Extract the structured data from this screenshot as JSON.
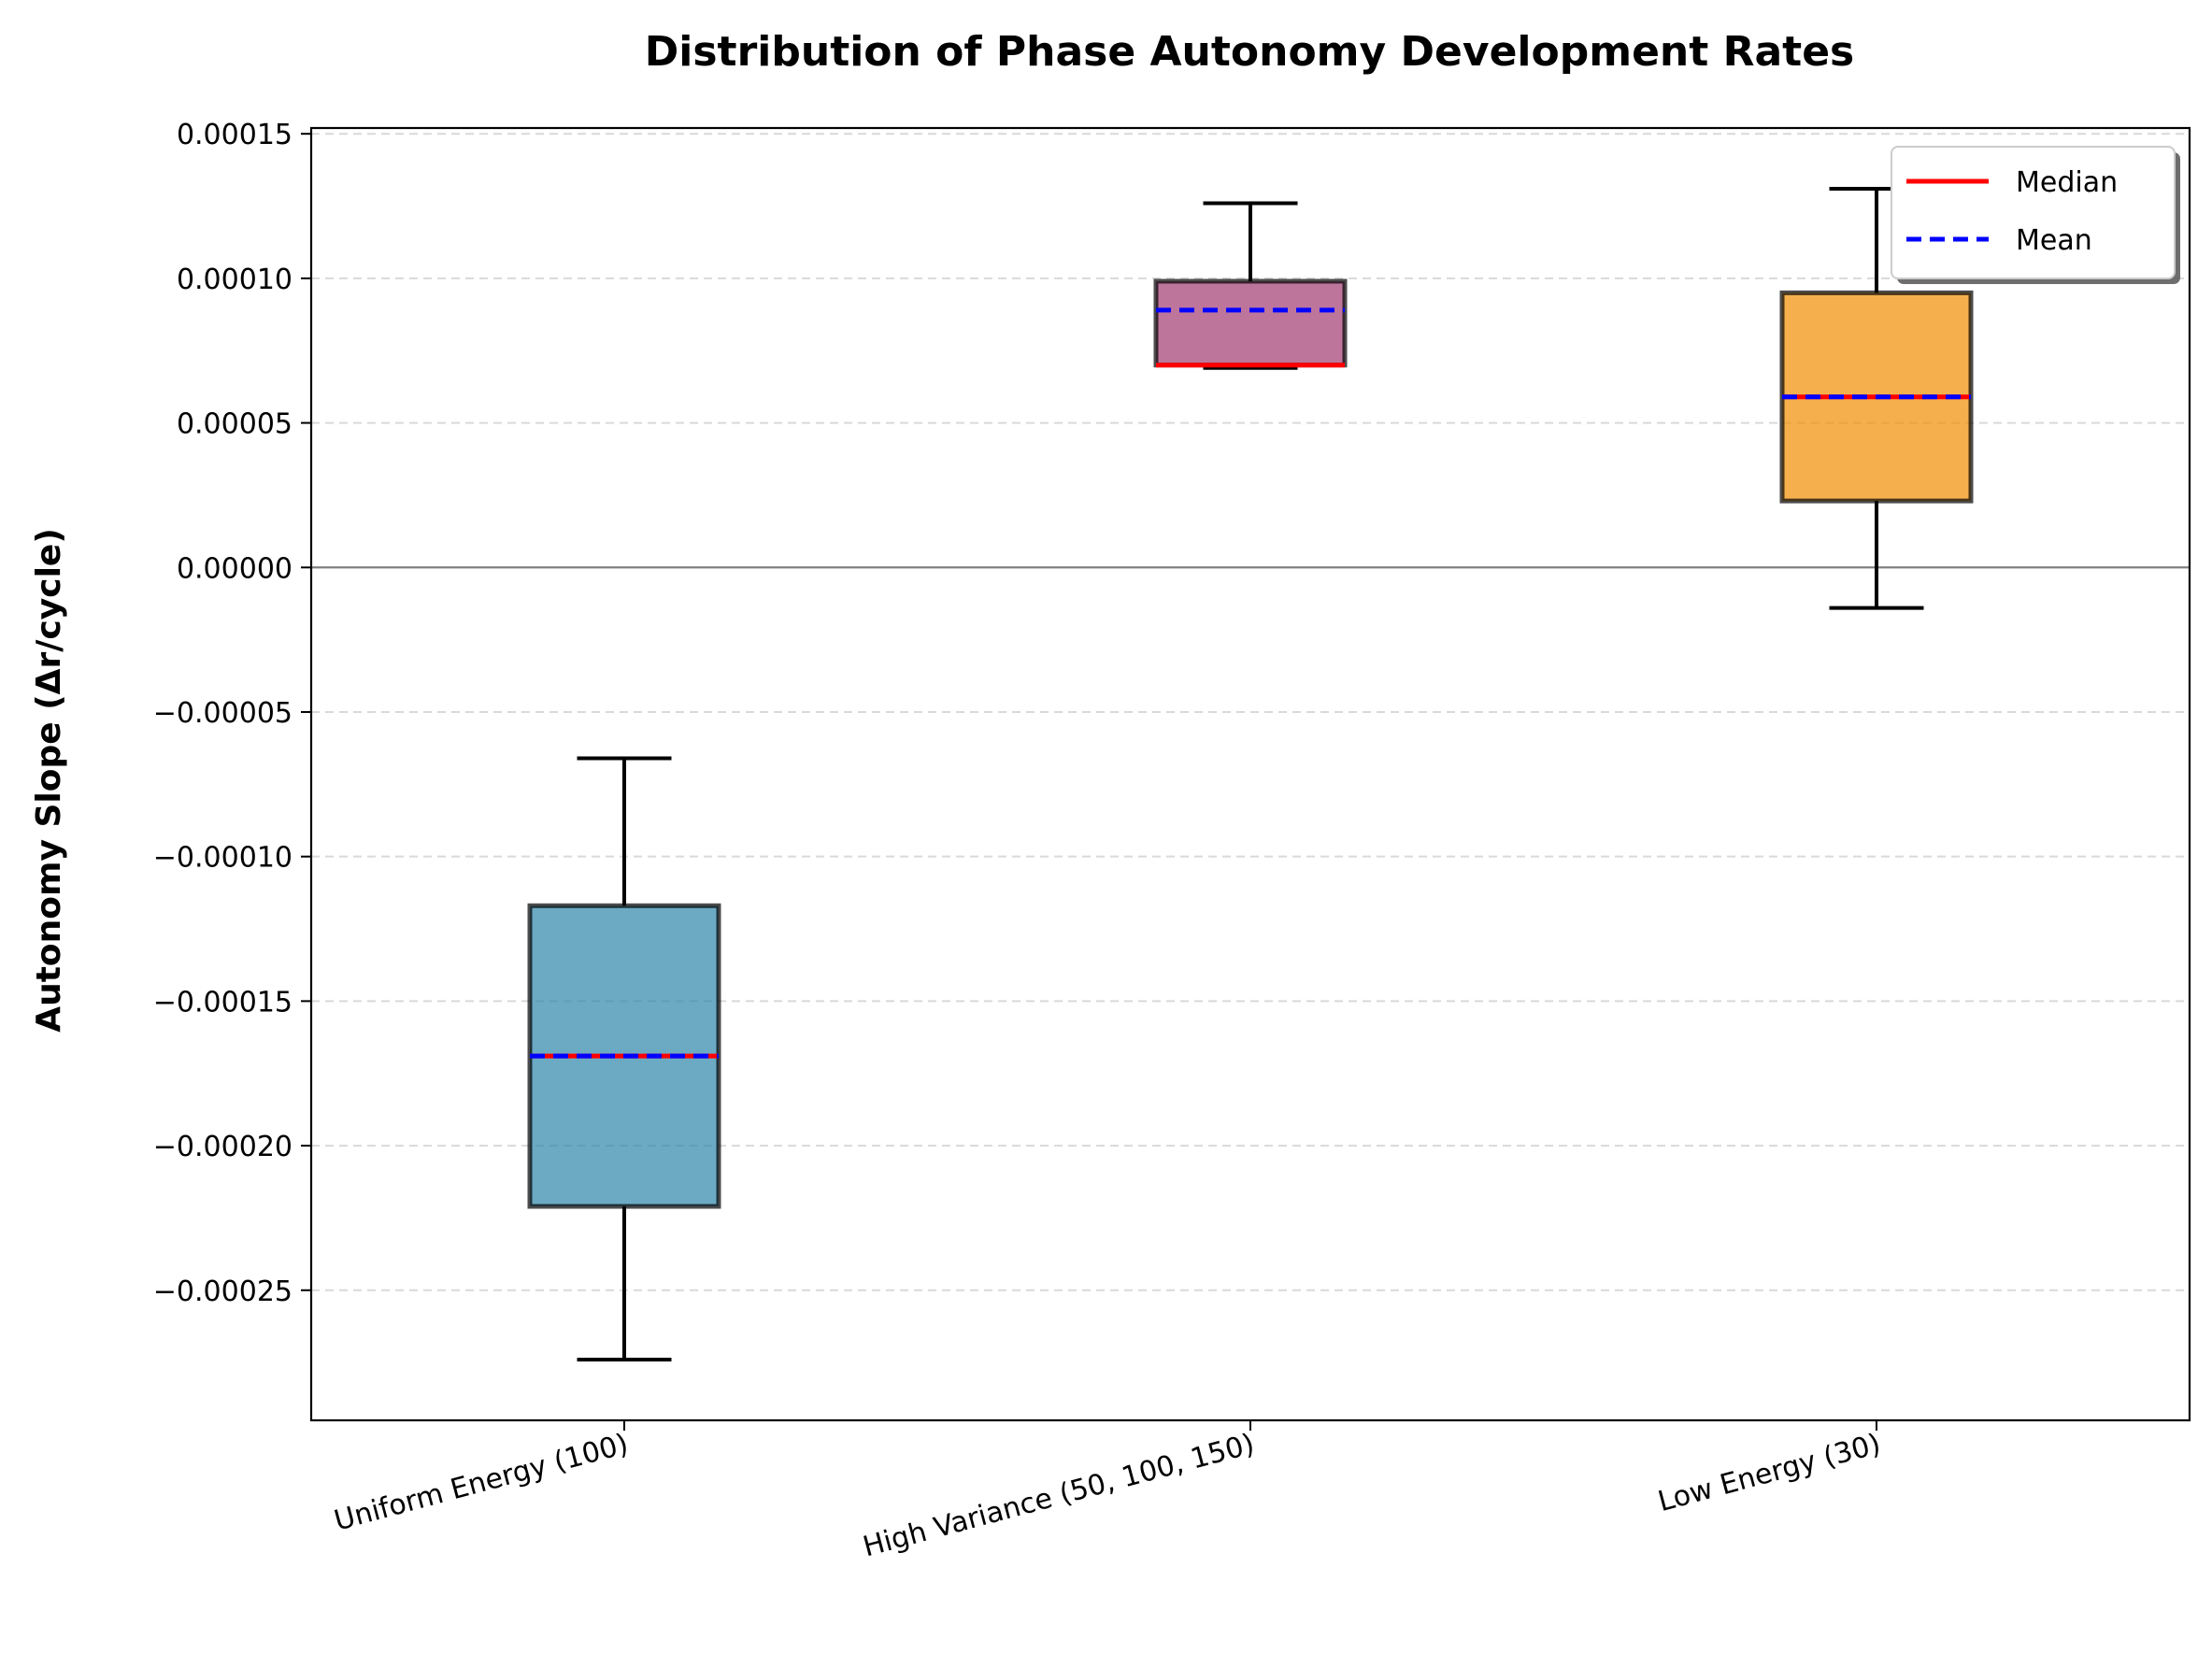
{
  "chart_data": {
    "type": "box",
    "title": "Distribution of Phase Autonomy Development Rates",
    "xlabel": "",
    "ylabel": "Autonomy Slope (Δr/cycle)",
    "ylim": [
      -0.000295,
      0.000152
    ],
    "yticks": [
      {
        "value": 0.00015,
        "label": "0.00015"
      },
      {
        "value": 0.0001,
        "label": "0.00010"
      },
      {
        "value": 5e-05,
        "label": "0.00005"
      },
      {
        "value": 0.0,
        "label": "0.00000"
      },
      {
        "value": -5e-05,
        "label": "−0.00005"
      },
      {
        "value": -0.0001,
        "label": "−0.00010"
      },
      {
        "value": -0.00015,
        "label": "−0.00015"
      },
      {
        "value": -0.0002,
        "label": "−0.00020"
      },
      {
        "value": -0.00025,
        "label": "−0.00025"
      }
    ],
    "grid": "y-dashed",
    "zero_line": true,
    "legend_placement": "top-right",
    "legend": [
      {
        "label": "Median",
        "style": "solid",
        "color": "#ff0000"
      },
      {
        "label": "Mean",
        "style": "dashed",
        "color": "#0000ff"
      }
    ],
    "categories": [
      {
        "name": "Uniform Energy (100)",
        "color": "#2e86ab",
        "whisker_low": -0.000274,
        "q1": -0.000221,
        "median": -0.000169,
        "mean": -0.000169,
        "q3": -0.000117,
        "whisker_high": -6.6e-05
      },
      {
        "name": "High Variance (50, 100, 150)",
        "color": "#a23b72",
        "whisker_low": 6.9e-05,
        "q1": 7e-05,
        "median": 7e-05,
        "mean": 8.9e-05,
        "q3": 9.9e-05,
        "whisker_high": 0.000126
      },
      {
        "name": "Low Energy (30)",
        "color": "#f18f01",
        "whisker_low": -1.4e-05,
        "q1": 2.3e-05,
        "median": 5.9e-05,
        "mean": 5.9e-05,
        "q3": 9.5e-05,
        "whisker_high": 0.000131
      }
    ]
  }
}
